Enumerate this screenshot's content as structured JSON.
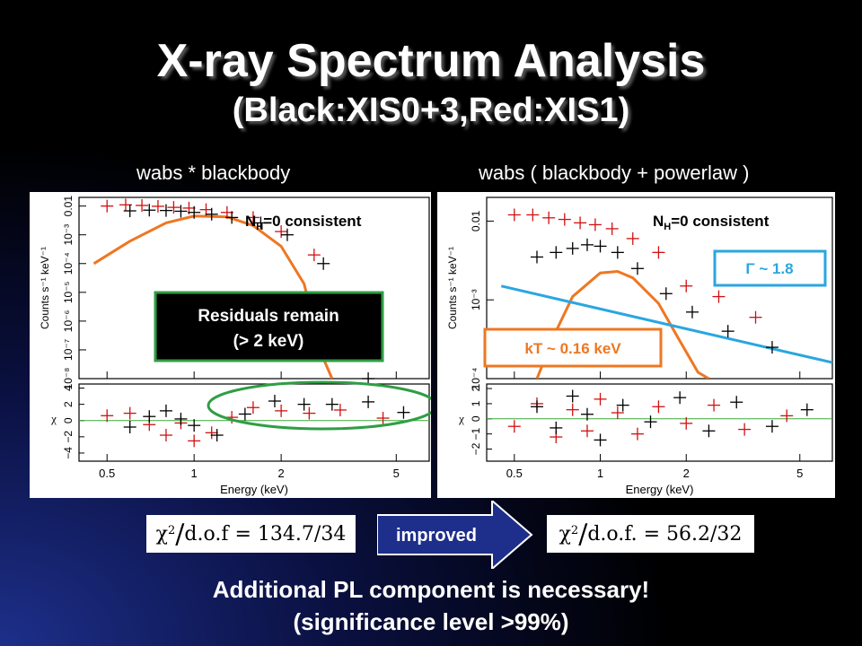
{
  "title": {
    "line1": "X-ray Spectrum Analysis",
    "line2": "(Black:XIS0+3,Red:XIS1)"
  },
  "left_panel": {
    "model": "wabs * blackbody",
    "nh_note_prefix": "N",
    "nh_note_sub": "H",
    "nh_note_suffix": "=0 consistent",
    "residual_box_line1": "Residuals remain",
    "residual_box_line2": "(> 2 keV)",
    "chi2": {
      "symbol": "χ",
      "exp": "2",
      "slash": "/",
      "dof_label": "d.o.f",
      "equals": "=",
      "value": "134.7/34"
    }
  },
  "right_panel": {
    "model": "wabs ( blackbody + powerlaw )",
    "nh_note_prefix": "N",
    "nh_note_sub": "H",
    "nh_note_suffix": "=0 consistent",
    "kt_label": "kT ~ 0.16 keV",
    "gamma_label": "Γ ~ 1.8",
    "chi2": {
      "symbol": "χ",
      "exp": "2",
      "slash": "/",
      "dof_label": "d.o.f.",
      "equals": "=",
      "value": "56.2/32"
    }
  },
  "arrow_label": "improved",
  "conclusion": {
    "line1": "Additional PL component is necessary!",
    "line2": "(significance level >99%)"
  },
  "colors": {
    "xis03": "#000000",
    "xis1": "#d01010",
    "blackbody": "#ee7722",
    "powerlaw": "#2aa6e0",
    "residual_box_border": "#2f9e44",
    "gamma_border": "#2aa6e0",
    "kt_border": "#ee7722",
    "arrow_fill": "#1d2f8a"
  },
  "chart_data": [
    {
      "type": "scatter",
      "model": "wabs * blackbody",
      "xscale": "log",
      "xlim": [
        0.4,
        6.5
      ],
      "xlabel": "Energy (keV)",
      "x_ticks": [
        "0.5",
        "1",
        "2",
        "5"
      ],
      "top": {
        "ylabel": "Counts s⁻¹ keV⁻¹",
        "yscale": "log",
        "ylim": [
          1e-08,
          0.02
        ],
        "y_ticks": [
          "10⁻⁸",
          "10⁻⁷",
          "10⁻⁶",
          "10⁻⁵",
          "10⁻⁴",
          "10⁻³",
          "0.01"
        ],
        "series": [
          {
            "name": "XIS1",
            "color": "#d01010",
            "x": [
              0.5,
              0.58,
              0.66,
              0.75,
              0.85,
              0.96,
              1.1,
              1.3,
              1.6,
              2.0,
              2.6,
              3.5
            ],
            "y": [
              0.01,
              0.011,
              0.0105,
              0.0098,
              0.009,
              0.0085,
              0.0075,
              0.006,
              0.004,
              0.0013,
              0.0002,
              1e-07
            ]
          },
          {
            "name": "XIS0+3",
            "color": "#000000",
            "x": [
              0.6,
              0.7,
              0.8,
              0.9,
              1.0,
              1.15,
              1.35,
              1.7,
              2.1,
              2.8,
              4.0
            ],
            "y": [
              0.0068,
              0.0072,
              0.007,
              0.0066,
              0.006,
              0.0052,
              0.004,
              0.0026,
              0.001,
              0.0001,
              1e-08
            ]
          }
        ],
        "model_curve": {
          "name": "blackbody",
          "color": "#ee7722",
          "x": [
            0.45,
            0.6,
            0.8,
            1.0,
            1.3,
            1.6,
            2.0,
            2.4,
            2.8,
            3.0
          ],
          "y": [
            0.0001,
            0.0006,
            0.0026,
            0.0045,
            0.0042,
            0.0021,
            0.0004,
            2e-05,
            5e-08,
            1e-08
          ]
        }
      },
      "bottom": {
        "ylabel": "χ",
        "ylim": [
          -5,
          4.5
        ],
        "y_ticks": [
          "−4",
          "−2",
          "0",
          "2",
          "4"
        ],
        "series": [
          {
            "name": "XIS1",
            "color": "#d01010",
            "x": [
              0.5,
              0.6,
              0.7,
              0.8,
              0.9,
              1.0,
              1.15,
              1.35,
              1.6,
              2.0,
              2.5,
              3.2,
              4.5
            ],
            "y": [
              0.6,
              0.9,
              -0.5,
              -1.8,
              -0.3,
              -2.5,
              -1.5,
              0.4,
              1.6,
              1.2,
              0.9,
              1.3,
              0.3
            ]
          },
          {
            "name": "XIS0+3",
            "color": "#000000",
            "x": [
              0.6,
              0.7,
              0.8,
              0.9,
              1.0,
              1.2,
              1.5,
              1.9,
              2.4,
              3.0,
              4.0,
              5.3
            ],
            "y": [
              -0.8,
              0.5,
              1.2,
              0.2,
              -0.6,
              -1.8,
              0.8,
              2.4,
              2.0,
              2.0,
              2.3,
              1.0
            ]
          }
        ]
      }
    },
    {
      "type": "scatter",
      "model": "wabs ( blackbody + powerlaw )",
      "xscale": "log",
      "xlim": [
        0.4,
        6.5
      ],
      "xlabel": "Energy (keV)",
      "x_ticks": [
        "0.5",
        "1",
        "2",
        "5"
      ],
      "top": {
        "ylabel": "Counts s⁻¹ keV⁻¹",
        "yscale": "log",
        "ylim": [
          0.0001,
          0.02
        ],
        "y_ticks": [
          "10⁻⁴",
          "10⁻³",
          "0.01"
        ],
        "series": [
          {
            "name": "XIS1",
            "color": "#d01010",
            "x": [
              0.5,
              0.58,
              0.66,
              0.75,
              0.85,
              0.96,
              1.1,
              1.3,
              1.6,
              2.0,
              2.6,
              3.5
            ],
            "y": [
              0.012,
              0.012,
              0.011,
              0.0105,
              0.0095,
              0.009,
              0.008,
              0.006,
              0.004,
              0.0015,
              0.0011,
              0.0006
            ]
          },
          {
            "name": "XIS0+3",
            "color": "#000000",
            "x": [
              0.6,
              0.7,
              0.8,
              0.9,
              1.0,
              1.15,
              1.35,
              1.7,
              2.1,
              2.8,
              4.0
            ],
            "y": [
              0.0035,
              0.004,
              0.0045,
              0.005,
              0.0048,
              0.004,
              0.0025,
              0.0012,
              0.0007,
              0.0004,
              0.00025
            ]
          }
        ],
        "model_curves": [
          {
            "name": "blackbody",
            "color": "#ee7722",
            "x": [
              0.6,
              0.7,
              0.8,
              1.0,
              1.15,
              1.3,
              1.6,
              1.9,
              2.2,
              2.4
            ],
            "y": [
              0.0001,
              0.0004,
              0.0011,
              0.0022,
              0.0023,
              0.0019,
              0.0009,
              0.0003,
              0.00012,
              0.0001
            ]
          },
          {
            "name": "powerlaw",
            "color": "#2aa6e0",
            "x": [
              0.45,
              6.5
            ],
            "y": [
              0.0015,
              0.00016
            ]
          }
        ]
      },
      "bottom": {
        "ylabel": "χ",
        "ylim": [
          -2.8,
          2.3
        ],
        "y_ticks": [
          "−2",
          "−1",
          "0",
          "1",
          "2"
        ],
        "series": [
          {
            "name": "XIS1",
            "color": "#d01010",
            "x": [
              0.5,
              0.6,
              0.7,
              0.8,
              0.9,
              1.0,
              1.15,
              1.35,
              1.6,
              2.0,
              2.5,
              3.2,
              4.5
            ],
            "y": [
              -0.5,
              1.0,
              -1.2,
              0.6,
              -0.8,
              1.3,
              0.4,
              -1.0,
              0.8,
              -0.3,
              0.9,
              -0.7,
              0.2
            ]
          },
          {
            "name": "XIS0+3",
            "color": "#000000",
            "x": [
              0.6,
              0.7,
              0.8,
              0.9,
              1.0,
              1.2,
              1.5,
              1.9,
              2.4,
              3.0,
              4.0,
              5.3
            ],
            "y": [
              0.8,
              -0.6,
              1.5,
              0.3,
              -1.4,
              0.9,
              -0.2,
              1.4,
              -0.8,
              1.1,
              -0.5,
              0.6
            ]
          }
        ]
      }
    }
  ]
}
